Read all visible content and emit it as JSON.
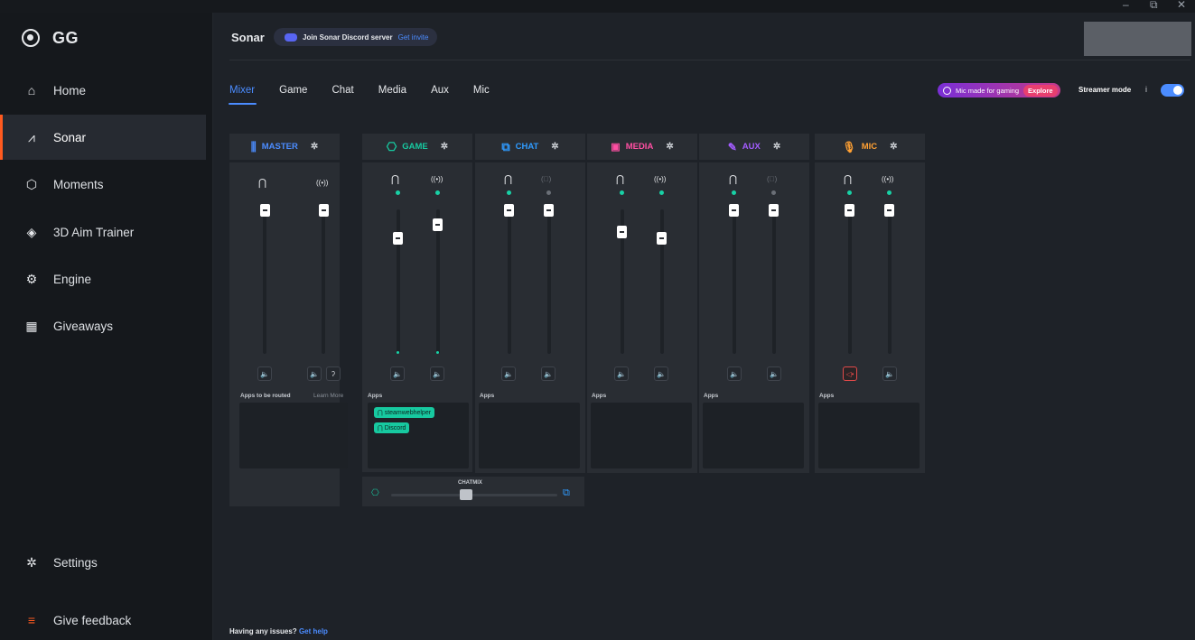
{
  "window": {
    "buttons": [
      "–",
      "⧉",
      "✕"
    ]
  },
  "sidebar": {
    "brand": "GG",
    "items": [
      {
        "label": "Home",
        "icon": "home-icon"
      },
      {
        "label": "Sonar",
        "icon": "sonar-icon",
        "active": true
      },
      {
        "label": "Moments",
        "icon": "moments-icon"
      },
      {
        "label": "3D Aim Trainer",
        "icon": "aim-trainer-icon"
      },
      {
        "label": "Engine",
        "icon": "engine-icon"
      },
      {
        "label": "Giveaways",
        "icon": "gift-icon"
      }
    ],
    "settings": "Settings",
    "feedback": "Give feedback"
  },
  "header": {
    "title": "Sonar",
    "discord_text": "Join Sonar Discord server",
    "discord_link": "Get invite"
  },
  "tabs": [
    "Mixer",
    "Game",
    "Chat",
    "Media",
    "Aux",
    "Mic"
  ],
  "right_controls": {
    "mic_promo": "Mic made for gaming",
    "mic_explore": "Explore",
    "streamer_mode": "Streamer mode",
    "info": "i",
    "streamer_mode_on": true
  },
  "channels": [
    {
      "name": "MASTER",
      "color": "#4b8cff",
      "apps_label": "Apps to be routed",
      "learn_more": "Learn More",
      "left_level": 1.0,
      "right_level": 1.0
    },
    {
      "name": "GAME",
      "color": "#17c9a0",
      "apps_label": "Apps",
      "apps": [
        "steamwebhelper",
        "Discord"
      ],
      "left_level": 0.82,
      "right_level": 0.9
    },
    {
      "name": "CHAT",
      "color": "#2f9bff",
      "apps_label": "Apps",
      "left_level": 1.0,
      "right_level": 1.0
    },
    {
      "name": "MEDIA",
      "color": "#ff4fa3",
      "apps_label": "Apps",
      "left_level": 0.87,
      "right_level": 0.83
    },
    {
      "name": "AUX",
      "color": "#a35cff",
      "apps_label": "Apps",
      "left_level": 1.0,
      "right_level": 1.0
    },
    {
      "name": "MIC",
      "color": "#ffa033",
      "apps_label": "Apps",
      "left_level": 1.0,
      "right_level": 1.0
    }
  ],
  "chatmix": {
    "label": "CHATMIX"
  },
  "footer": {
    "help_text": "Having any issues?",
    "help_link": "Get help"
  }
}
